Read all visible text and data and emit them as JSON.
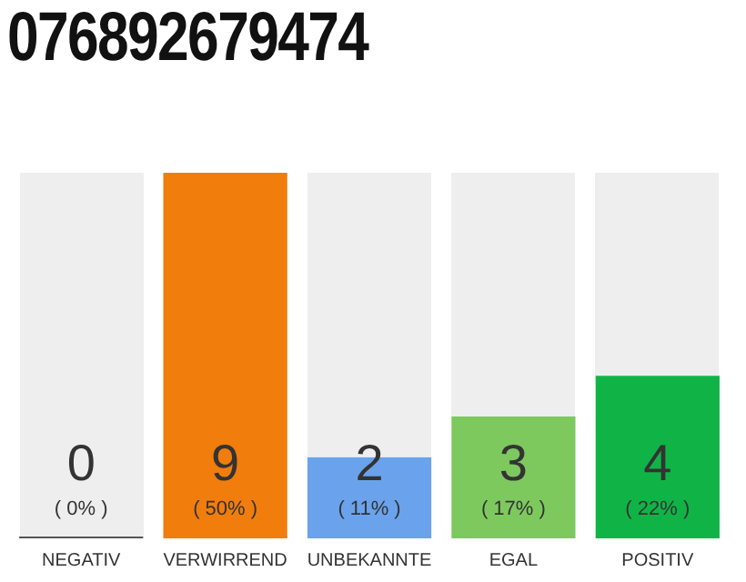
{
  "chart_data": {
    "type": "bar",
    "title": "076892679474",
    "categories": [
      "NEGATIV",
      "VERWIRREND",
      "UNBEKANNTE",
      "EGAL",
      "POSITIV"
    ],
    "values": [
      0,
      9,
      2,
      3,
      4
    ],
    "colors": [
      "#555555",
      "#f07d0c",
      "#6aa3ec",
      "#7dc95e",
      "#10b446"
    ],
    "value_labels": [
      "0\n( 0% )",
      "9\n( 50% )",
      "2\n( 11% )",
      "3\n( 17% )",
      "4\n( 22% )"
    ],
    "tick_labels": "x",
    "grid": false,
    "legend": false
  }
}
